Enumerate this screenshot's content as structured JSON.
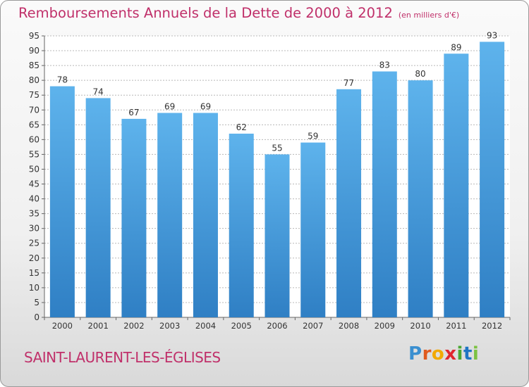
{
  "title": {
    "main": "Remboursements Annuels de la Dette de 2000 à 2012",
    "unit": "(en milliers d'€)"
  },
  "location": "SAINT-LAURENT-LES-ÉGLISES",
  "logo": {
    "text": "Proxiti"
  },
  "colors": {
    "bar": "#3a8ed6",
    "bar_light": "#5aaee8",
    "title": "#c0306a",
    "grid": "#b8b8b8"
  },
  "chart_data": {
    "type": "bar",
    "title": "Remboursements Annuels de la Dette de 2000 à 2012",
    "xlabel": "",
    "ylabel": "",
    "categories": [
      "2000",
      "2001",
      "2002",
      "2003",
      "2004",
      "2005",
      "2006",
      "2007",
      "2008",
      "2009",
      "2010",
      "2011",
      "2012"
    ],
    "values": [
      78,
      74,
      67,
      69,
      69,
      62,
      55,
      59,
      77,
      83,
      80,
      89,
      93
    ],
    "ylim": [
      0,
      95
    ],
    "yticks": [
      0,
      5,
      10,
      15,
      20,
      25,
      30,
      35,
      40,
      45,
      50,
      55,
      60,
      65,
      70,
      75,
      80,
      85,
      90,
      95
    ],
    "grid": true
  }
}
